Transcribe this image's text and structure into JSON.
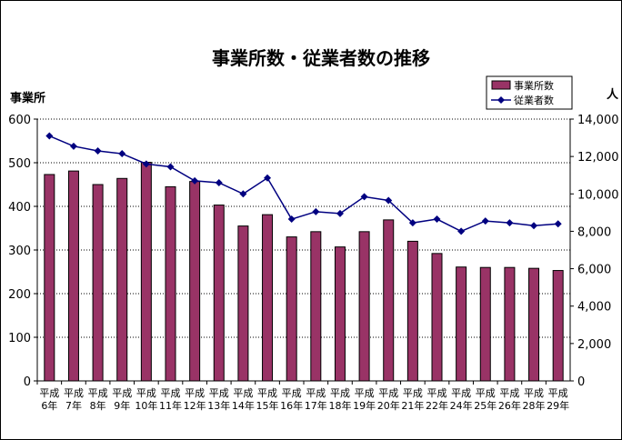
{
  "chart_data": {
    "type": "bar+line",
    "title": "事業所数・従業者数の推移",
    "categories": [
      [
        "平成",
        "6年"
      ],
      [
        "平成",
        "7年"
      ],
      [
        "平成",
        "8年"
      ],
      [
        "平成",
        "9年"
      ],
      [
        "平成",
        "10年"
      ],
      [
        "平成",
        "11年"
      ],
      [
        "平成",
        "12年"
      ],
      [
        "平成",
        "13年"
      ],
      [
        "平成",
        "14年"
      ],
      [
        "平成",
        "15年"
      ],
      [
        "平成",
        "16年"
      ],
      [
        "平成",
        "17年"
      ],
      [
        "平成",
        "18年"
      ],
      [
        "平成",
        "19年"
      ],
      [
        "平成",
        "20年"
      ],
      [
        "平成",
        "21年"
      ],
      [
        "平成",
        "22年"
      ],
      [
        "平成",
        "24年"
      ],
      [
        "平成",
        "25年"
      ],
      [
        "平成",
        "26年"
      ],
      [
        "平成",
        "28年"
      ],
      [
        "平成",
        "29年"
      ]
    ],
    "series": [
      {
        "name": "事業所数",
        "type": "bar",
        "axis": "left",
        "color": "#993366",
        "values": [
          473,
          481,
          450,
          464,
          501,
          445,
          457,
          403,
          355,
          381,
          330,
          342,
          307,
          342,
          369,
          320,
          292,
          261,
          260,
          260,
          258,
          253
        ]
      },
      {
        "name": "従業者数",
        "type": "line",
        "axis": "right",
        "color": "#000080",
        "values": [
          13100,
          12550,
          12300,
          12150,
          11600,
          11450,
          10700,
          10600,
          10000,
          10850,
          8650,
          9050,
          8950,
          9850,
          9650,
          8450,
          8650,
          8000,
          8550,
          8450,
          8300,
          8400
        ]
      }
    ],
    "y_left": {
      "label": "事業所",
      "min": 0,
      "max": 600,
      "ticks": [
        "0",
        "100",
        "200",
        "300",
        "400",
        "500",
        "600"
      ]
    },
    "y_right": {
      "label": "人",
      "min": 0,
      "max": 14000,
      "ticks": [
        "0",
        "2,000",
        "4,000",
        "6,000",
        "8,000",
        "10,000",
        "12,000",
        "14,000"
      ]
    },
    "grid": true,
    "legend_position": "top-right"
  }
}
